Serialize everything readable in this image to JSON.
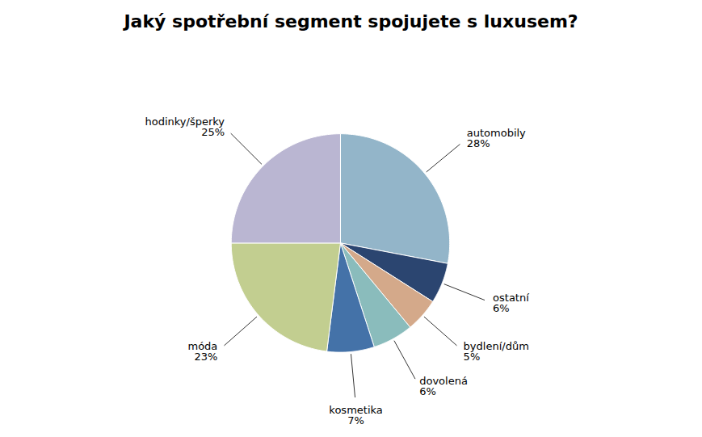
{
  "chart_data": {
    "type": "pie",
    "title": "Jaký spotřební segment spojujete s luxusem?",
    "categories": [
      "automobily",
      "ostatní",
      "bydlení/dům",
      "dovolená",
      "kosmetika",
      "móda",
      "hodinky/šperky"
    ],
    "values": [
      28,
      6,
      5,
      6,
      7,
      23,
      25
    ],
    "value_labels": [
      "28%",
      "6%",
      "5%",
      "6%",
      "7%",
      "23%",
      "25%"
    ],
    "colors": [
      "#93B5C9",
      "#2B4570",
      "#D4A98A",
      "#8ABCBC",
      "#4472A8",
      "#C2CE90",
      "#BAB6D2"
    ],
    "data_labels": true
  }
}
